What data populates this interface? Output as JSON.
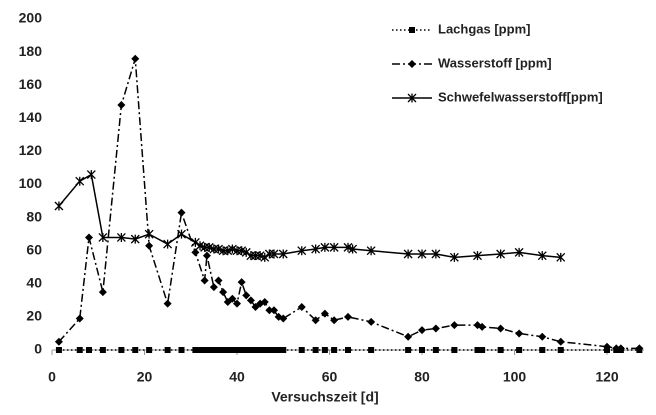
{
  "chart_data": {
    "type": "line",
    "xlabel": "Versuchszeit [d]",
    "xlim": [
      0,
      128
    ],
    "xticks": [
      0,
      20,
      40,
      60,
      80,
      100,
      120
    ],
    "ylim": [
      0,
      200
    ],
    "yticks": [
      0,
      20,
      40,
      60,
      80,
      100,
      120,
      140,
      160,
      180,
      200
    ],
    "grid": false,
    "legend": "upper right",
    "series": [
      {
        "name": "Lachgas [ppm]",
        "color": "#000000",
        "linestyle": "dotted",
        "marker": "square",
        "x": [
          1.5,
          6,
          8,
          11,
          15,
          18,
          21,
          25,
          28,
          31,
          32,
          33,
          34,
          35,
          36,
          37,
          38,
          39,
          40,
          41,
          42,
          43,
          44,
          45,
          46,
          47,
          48,
          49,
          50,
          54,
          57,
          59,
          61,
          64,
          69,
          77,
          80,
          83,
          87,
          92,
          93,
          97,
          101,
          106,
          110,
          120,
          122,
          123,
          127
        ],
        "values": [
          0,
          0,
          0,
          0,
          0,
          0,
          0,
          0,
          0,
          0,
          0,
          0,
          0,
          0,
          0,
          0,
          0,
          0,
          0,
          0,
          0,
          0,
          0,
          0,
          0,
          0,
          0,
          0,
          0,
          0,
          0,
          0,
          0,
          0,
          0,
          0,
          0,
          0,
          0,
          0,
          0,
          0,
          0,
          0,
          0,
          0,
          0,
          0,
          0
        ]
      },
      {
        "name": "Wasserstoff [ppm]",
        "color": "#000000",
        "linestyle": "dashdot",
        "marker": "diamond",
        "x": [
          1.5,
          6,
          8,
          11,
          15,
          18,
          21,
          25,
          28,
          31,
          33,
          33.5,
          35,
          36,
          37,
          38,
          39,
          40,
          41,
          42,
          43,
          44,
          45,
          46,
          47,
          48,
          49,
          50,
          54,
          57,
          59,
          61,
          64,
          69,
          77,
          80,
          83,
          87,
          92,
          93,
          97,
          101,
          106,
          110,
          120,
          122,
          123,
          127
        ],
        "values": [
          5,
          19,
          68,
          35,
          148,
          176,
          63,
          28,
          83,
          59,
          42,
          57,
          38,
          42,
          35,
          29,
          31,
          28,
          41,
          33,
          30,
          26,
          28,
          29,
          24,
          24,
          20,
          19,
          26,
          18,
          22,
          18,
          20,
          17,
          8,
          12,
          13,
          15,
          15,
          14,
          13,
          10,
          8,
          5,
          2,
          1,
          1,
          1
        ]
      },
      {
        "name": "Schwefelwasserstoff[ppm]",
        "color": "#000000",
        "linestyle": "solid",
        "marker": "star",
        "x": [
          1.5,
          6,
          8.5,
          11,
          15,
          18,
          21,
          25,
          28,
          31,
          32,
          33,
          34,
          35,
          36,
          37,
          38,
          39,
          40,
          41,
          42,
          43,
          44,
          45,
          46,
          47,
          48,
          50,
          54,
          57,
          59,
          61,
          64,
          65,
          69,
          77,
          80,
          83,
          87,
          92,
          97,
          101,
          106,
          110
        ],
        "values": [
          87,
          102,
          106,
          68,
          68,
          67,
          70,
          64,
          70,
          65,
          63,
          62,
          62,
          61,
          61,
          60,
          60,
          61,
          60,
          60,
          59,
          57,
          57,
          57,
          56,
          58,
          58,
          58,
          60,
          61,
          62,
          62,
          62,
          61,
          60,
          58,
          58,
          58,
          56,
          57,
          58,
          59,
          57,
          56
        ]
      }
    ]
  }
}
